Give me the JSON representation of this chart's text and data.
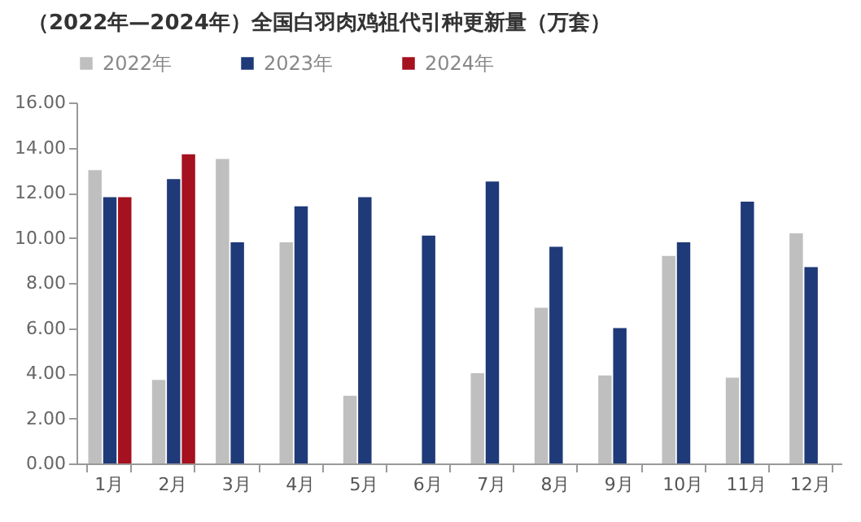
{
  "chart_data": {
    "type": "bar",
    "title": "（2022年—2024年）全国白羽肉鸡祖代引种更新量（万套）",
    "categories": [
      "1月",
      "2月",
      "3月",
      "4月",
      "5月",
      "6月",
      "7月",
      "8月",
      "9月",
      "10月",
      "11月",
      "12月"
    ],
    "series": [
      {
        "name": "2022年",
        "color": "#bfbfbf",
        "values": [
          13.0,
          3.7,
          13.5,
          9.8,
          3.0,
          null,
          4.0,
          6.9,
          3.9,
          9.2,
          3.8,
          10.2
        ]
      },
      {
        "name": "2023年",
        "color": "#1f3a78",
        "values": [
          11.8,
          12.6,
          9.8,
          11.4,
          11.8,
          10.1,
          12.5,
          9.6,
          6.0,
          9.8,
          11.6,
          8.7
        ]
      },
      {
        "name": "2024年",
        "color": "#a5111f",
        "values": [
          11.8,
          13.7,
          null,
          null,
          null,
          null,
          null,
          null,
          null,
          null,
          null,
          null
        ]
      }
    ],
    "ylim": [
      0,
      16
    ],
    "yticks": [
      {
        "value": 0,
        "label": "0.00"
      },
      {
        "value": 2,
        "label": "2.00"
      },
      {
        "value": 4,
        "label": "4.00"
      },
      {
        "value": 6,
        "label": "6.00"
      },
      {
        "value": 8,
        "label": "8.00"
      },
      {
        "value": 10,
        "label": "10.00"
      },
      {
        "value": 12,
        "label": "12.00"
      },
      {
        "value": 14,
        "label": "14.00"
      },
      {
        "value": 16,
        "label": "16.00"
      }
    ],
    "grid": false,
    "legend": "top"
  }
}
